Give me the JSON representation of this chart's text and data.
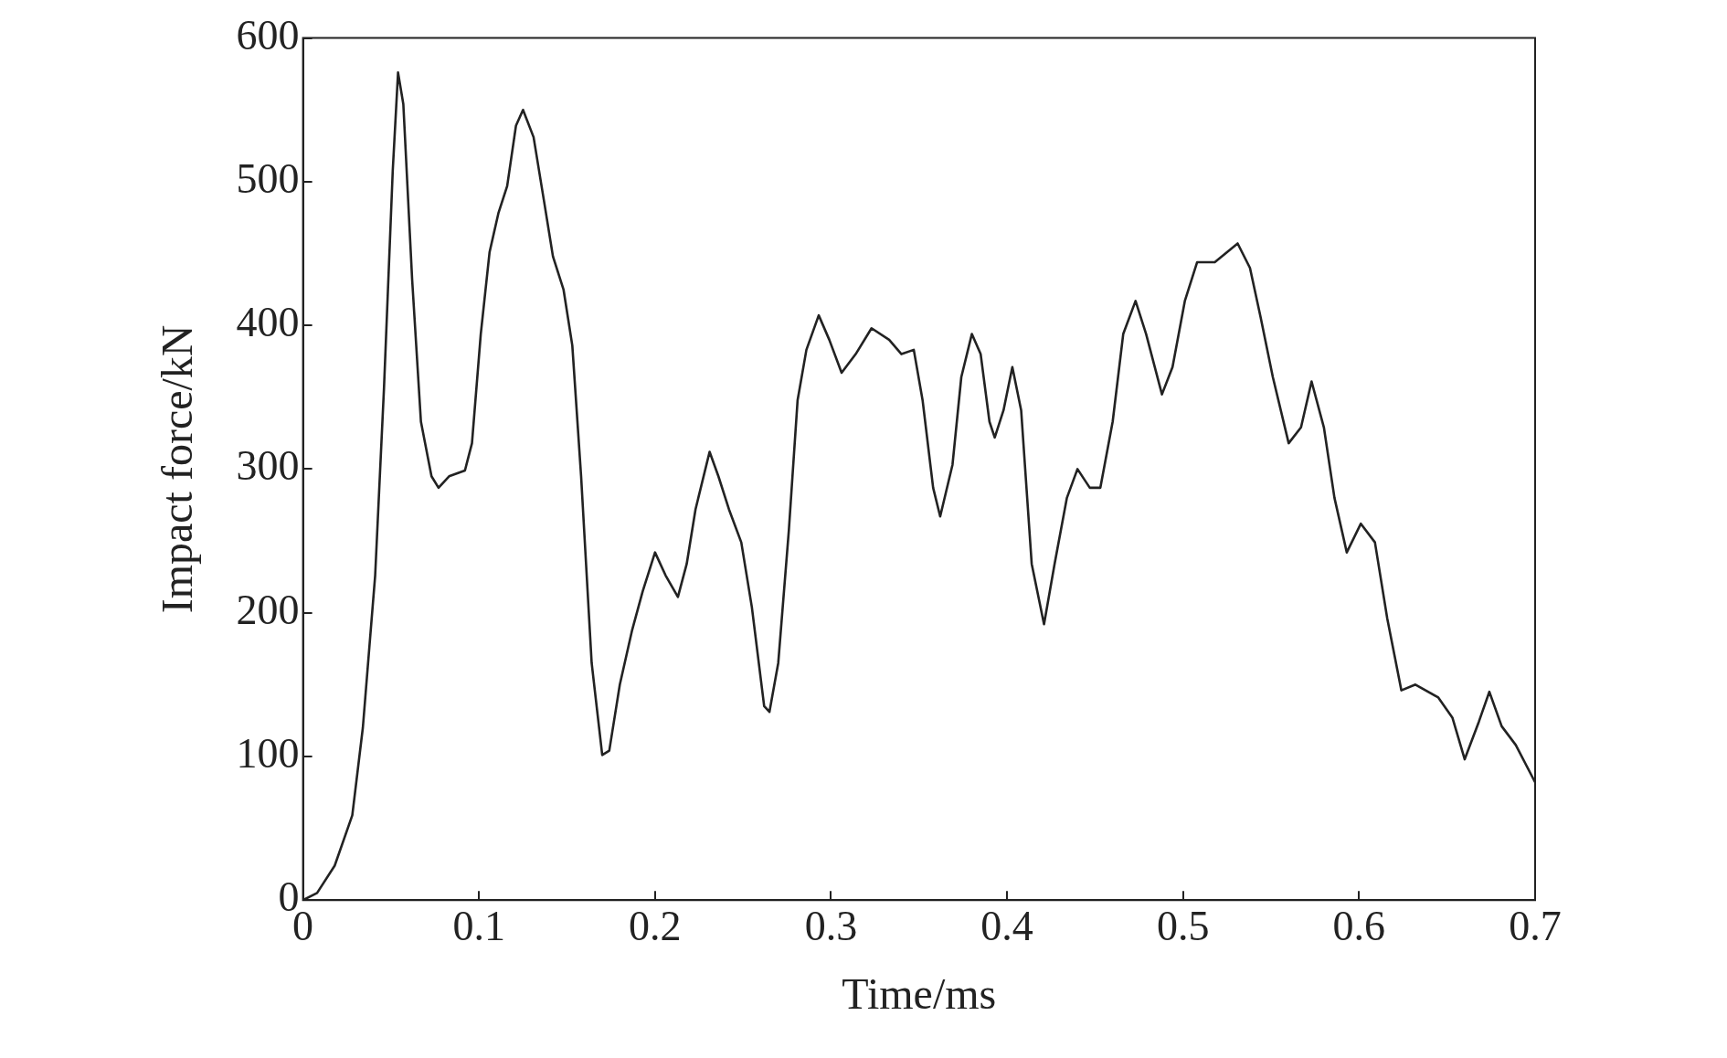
{
  "chart_data": {
    "type": "line",
    "xlabel": "Time/ms",
    "ylabel": "Impact force/kN",
    "xlim": [
      0,
      0.7
    ],
    "xticks": [
      0,
      0.1,
      0.2,
      0.3,
      0.4,
      0.5,
      0.6,
      0.7
    ],
    "ylim": [
      0,
      600
    ],
    "yticks": [
      0,
      100,
      200,
      300,
      400,
      500,
      600
    ],
    "grid": false,
    "legend": false,
    "marker": "none",
    "line_style": "solid",
    "series": [
      {
        "color": "#222222",
        "x": [
          0,
          0.008,
          0.018,
          0.028,
          0.034,
          0.041,
          0.046,
          0.051,
          0.054,
          0.057,
          0.062,
          0.067,
          0.073,
          0.077,
          0.083,
          0.092,
          0.096,
          0.101,
          0.106,
          0.111,
          0.116,
          0.121,
          0.125,
          0.131,
          0.137,
          0.142,
          0.148,
          0.153,
          0.158,
          0.164,
          0.17,
          0.174,
          0.18,
          0.187,
          0.193,
          0.2,
          0.206,
          0.213,
          0.218,
          0.223,
          0.231,
          0.236,
          0.242,
          0.249,
          0.255,
          0.262,
          0.265,
          0.27,
          0.276,
          0.281,
          0.286,
          0.293,
          0.299,
          0.306,
          0.314,
          0.323,
          0.333,
          0.34,
          0.347,
          0.352,
          0.358,
          0.362,
          0.369,
          0.374,
          0.38,
          0.385,
          0.39,
          0.393,
          0.398,
          0.403,
          0.408,
          0.414,
          0.421,
          0.427,
          0.434,
          0.44,
          0.447,
          0.453,
          0.46,
          0.466,
          0.473,
          0.479,
          0.488,
          0.494,
          0.501,
          0.508,
          0.518,
          0.531,
          0.538,
          0.544,
          0.551,
          0.56,
          0.567,
          0.573,
          0.58,
          0.586,
          0.593,
          0.601,
          0.609,
          0.616,
          0.624,
          0.632,
          0.645,
          0.653,
          0.66,
          0.668,
          0.674,
          0.681,
          0.689,
          0.7
        ],
        "values": [
          0,
          5,
          24,
          59,
          120,
          226,
          356,
          508,
          576,
          554,
          432,
          333,
          295,
          287,
          295,
          299,
          318,
          394,
          451,
          478,
          497,
          539,
          550,
          531,
          486,
          448,
          425,
          386,
          295,
          165,
          101,
          104,
          150,
          188,
          215,
          242,
          226,
          211,
          234,
          272,
          312,
          295,
          272,
          249,
          204,
          135,
          131,
          165,
          257,
          348,
          383,
          407,
          390,
          367,
          380,
          398,
          390,
          380,
          383,
          348,
          287,
          267,
          303,
          364,
          394,
          380,
          333,
          322,
          341,
          371,
          341,
          234,
          192,
          234,
          280,
          300,
          287,
          287,
          333,
          394,
          417,
          394,
          352,
          371,
          417,
          444,
          444,
          457,
          440,
          406,
          364,
          318,
          329,
          361,
          329,
          280,
          242,
          262,
          249,
          196,
          146,
          150,
          141,
          127,
          98,
          124,
          145,
          121,
          108,
          82
        ]
      }
    ]
  }
}
